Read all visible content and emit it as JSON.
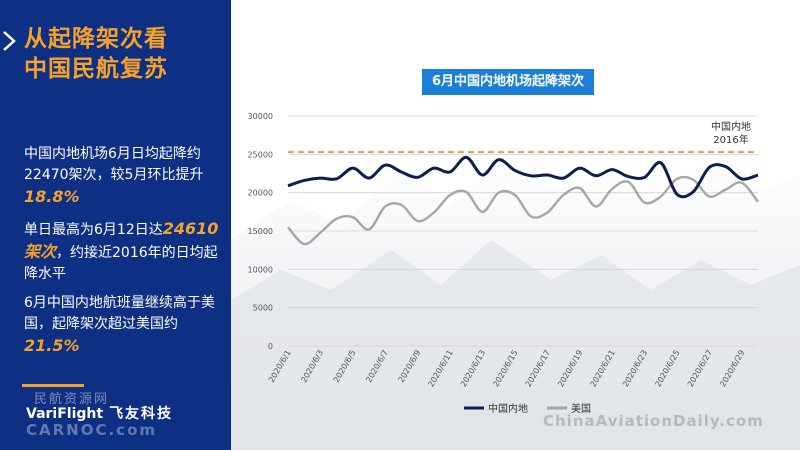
{
  "sidebar": {
    "title_line1": "从起降架次看",
    "title_line2": "中国民航复苏",
    "p1_text": "中国内地机场6月日均起降约22470架次，较5月环比提升",
    "p1_highlight": "18.8%",
    "p2_prefix": "单日最高为6月12日达",
    "p2_highlight": "24610架次",
    "p2_suffix": "，约接近2016年的日均起降水平",
    "p3_text": "6月中国内地航班量继续高于美国，起降架次超过美国约",
    "p3_highlight": "21.5%",
    "watermark_cn": "民航资源网",
    "brand_en": "VariFlight",
    "brand_cn": "飞友科技",
    "watermark_carnoc": "CARNOC.com"
  },
  "watermark_site": "ChinaAviationDaily.com",
  "colors": {
    "sidebar_bg": "#0d2f84",
    "accent_orange": "#f5a22b",
    "badge_blue": "#1b7fd6",
    "china_line": "#0d1f4d",
    "us_line": "#a6a6a6",
    "reference_line": "#ee8a2a"
  },
  "chart_data": {
    "type": "line",
    "title": "6月中国内地机场起降架次",
    "x": [
      "2020/6/1",
      "2020/6/2",
      "2020/6/3",
      "2020/6/4",
      "2020/6/5",
      "2020/6/6",
      "2020/6/7",
      "2020/6/8",
      "2020/6/9",
      "2020/6/10",
      "2020/6/11",
      "2020/6/12",
      "2020/6/13",
      "2020/6/14",
      "2020/6/15",
      "2020/6/16",
      "2020/6/17",
      "2020/6/18",
      "2020/6/19",
      "2020/6/20",
      "2020/6/21",
      "2020/6/22",
      "2020/6/23",
      "2020/6/24",
      "2020/6/25",
      "2020/6/26",
      "2020/6/27",
      "2020/6/28",
      "2020/6/29",
      "2020/6/30"
    ],
    "x_tick_labels": [
      "2020/6/1",
      "2020/6/3",
      "2020/6/5",
      "2020/6/7",
      "2020/6/9",
      "2020/6/11",
      "2020/6/13",
      "2020/6/15",
      "2020/6/17",
      "2020/6/19",
      "2020/6/21",
      "2020/6/23",
      "2020/6/25",
      "2020/6/27",
      "2020/6/29"
    ],
    "y_ticks": [
      0,
      5000,
      10000,
      15000,
      20000,
      25000,
      30000
    ],
    "ylim": [
      0,
      30000
    ],
    "series": [
      {
        "name": "中国内地",
        "values": [
          20900,
          21600,
          21900,
          21800,
          23200,
          21900,
          23600,
          22700,
          22000,
          23200,
          22700,
          24610,
          22300,
          24300,
          22900,
          22200,
          22300,
          21900,
          23200,
          22200,
          23000,
          22100,
          22000,
          23900,
          19800,
          20100,
          23300,
          23400,
          21800,
          22300
        ]
      },
      {
        "name": "美国",
        "values": [
          15500,
          13300,
          14800,
          16600,
          16800,
          15200,
          18200,
          18400,
          16300,
          17400,
          19700,
          20100,
          17500,
          20000,
          19700,
          16900,
          17400,
          19700,
          20600,
          18200,
          20500,
          21400,
          18700,
          19500,
          21800,
          21700,
          19500,
          20400,
          21300,
          18800
        ]
      }
    ],
    "reference_line": {
      "value": 25300,
      "label_line1": "中国内地",
      "label_line2": "2016年"
    },
    "grid": "horizontal",
    "legend_position": "bottom"
  }
}
